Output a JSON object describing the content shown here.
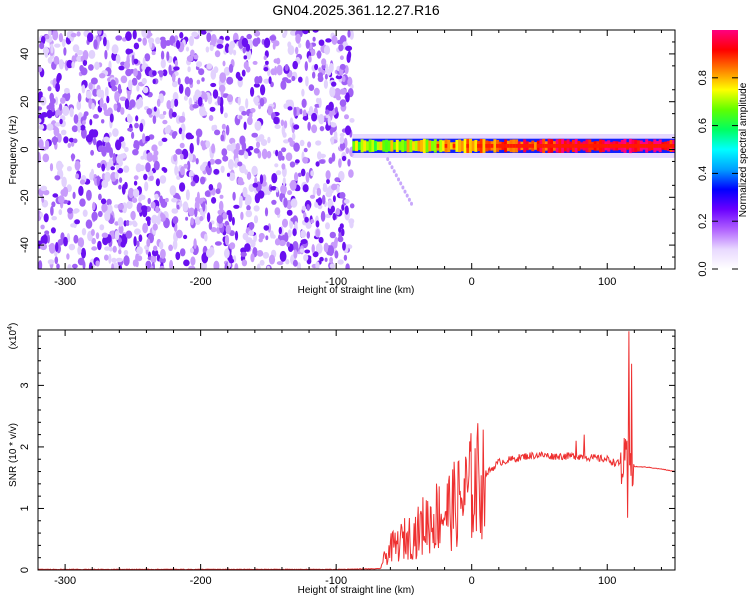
{
  "title": "GN04.2025.361.12.27.R16",
  "chart_data": [
    {
      "type": "heatmap",
      "xlabel": "Height of straight line (km)",
      "ylabel": "Frequency (Hz)",
      "xlim": [
        -320,
        150
      ],
      "ylim": [
        -50,
        50
      ],
      "xticks": [
        -300,
        -200,
        -100,
        0,
        100
      ],
      "yticks": [
        -40,
        -20,
        0,
        20,
        40
      ],
      "colorbar": {
        "label": "Normalized spectral amplitude",
        "range": [
          0,
          1
        ],
        "ticks": [
          "0.0",
          "0.2",
          "0.4",
          "0.6",
          "0.8"
        ],
        "colormap": [
          "#ffffff",
          "#e8d8ff",
          "#b060ff",
          "#6a00ff",
          "#0000ff",
          "#00a0ff",
          "#00ffff",
          "#00ff60",
          "#60ff00",
          "#ffff00",
          "#ff8000",
          "#ff0000",
          "#ff0080"
        ]
      },
      "noise_region": {
        "x_range": [
          -320,
          -88
        ],
        "freq_range": [
          -50,
          50
        ],
        "typical_amplitude": [
          0.05,
          0.3
        ]
      },
      "signal_band": {
        "x_range": [
          -88,
          150
        ],
        "center_freq_hz": 1.5,
        "half_width_hz": 3,
        "peak_amplitude": 1.0
      },
      "grid": false
    },
    {
      "type": "line",
      "xlabel": "Height of straight line (km)",
      "ylabel": "SNR (10 * v/v)",
      "y_multiplier": "(x10",
      "y_multiplier_exp": "4",
      "y_multiplier_close": ")",
      "xlim": [
        -320,
        150
      ],
      "ylim": [
        0,
        3.9
      ],
      "xticks": [
        -300,
        -200,
        -100,
        0,
        100
      ],
      "yticks": [
        0,
        1,
        2,
        3
      ],
      "series": [
        {
          "color": "#ee3030",
          "x": [
            -320,
            -200,
            -100,
            -68,
            -64,
            -60,
            -55,
            -50,
            -45,
            -40,
            -35,
            -30,
            -25,
            -20,
            -15,
            -10,
            -5,
            0,
            5,
            10,
            15,
            20,
            30,
            40,
            50,
            60,
            70,
            80,
            90,
            100,
            105,
            110,
            113,
            115,
            117,
            118,
            120,
            130,
            140,
            150
          ],
          "y": [
            0.01,
            0.01,
            0.01,
            0.02,
            0.2,
            0.35,
            0.4,
            0.5,
            0.55,
            0.6,
            0.75,
            0.8,
            0.9,
            0.95,
            1.0,
            1.1,
            1.2,
            1.35,
            1.45,
            1.55,
            1.65,
            1.75,
            1.8,
            1.85,
            1.87,
            1.85,
            1.85,
            1.85,
            1.82,
            1.8,
            1.75,
            1.72,
            1.7,
            1.68,
            1.7,
            1.69,
            1.68,
            1.67,
            1.64,
            1.6
          ]
        }
      ],
      "annotations": [
        {
          "x": 116,
          "y": 3.88,
          "text": ""
        },
        {
          "x": 118,
          "y": 3.35,
          "text": ""
        }
      ],
      "grid": false
    }
  ]
}
